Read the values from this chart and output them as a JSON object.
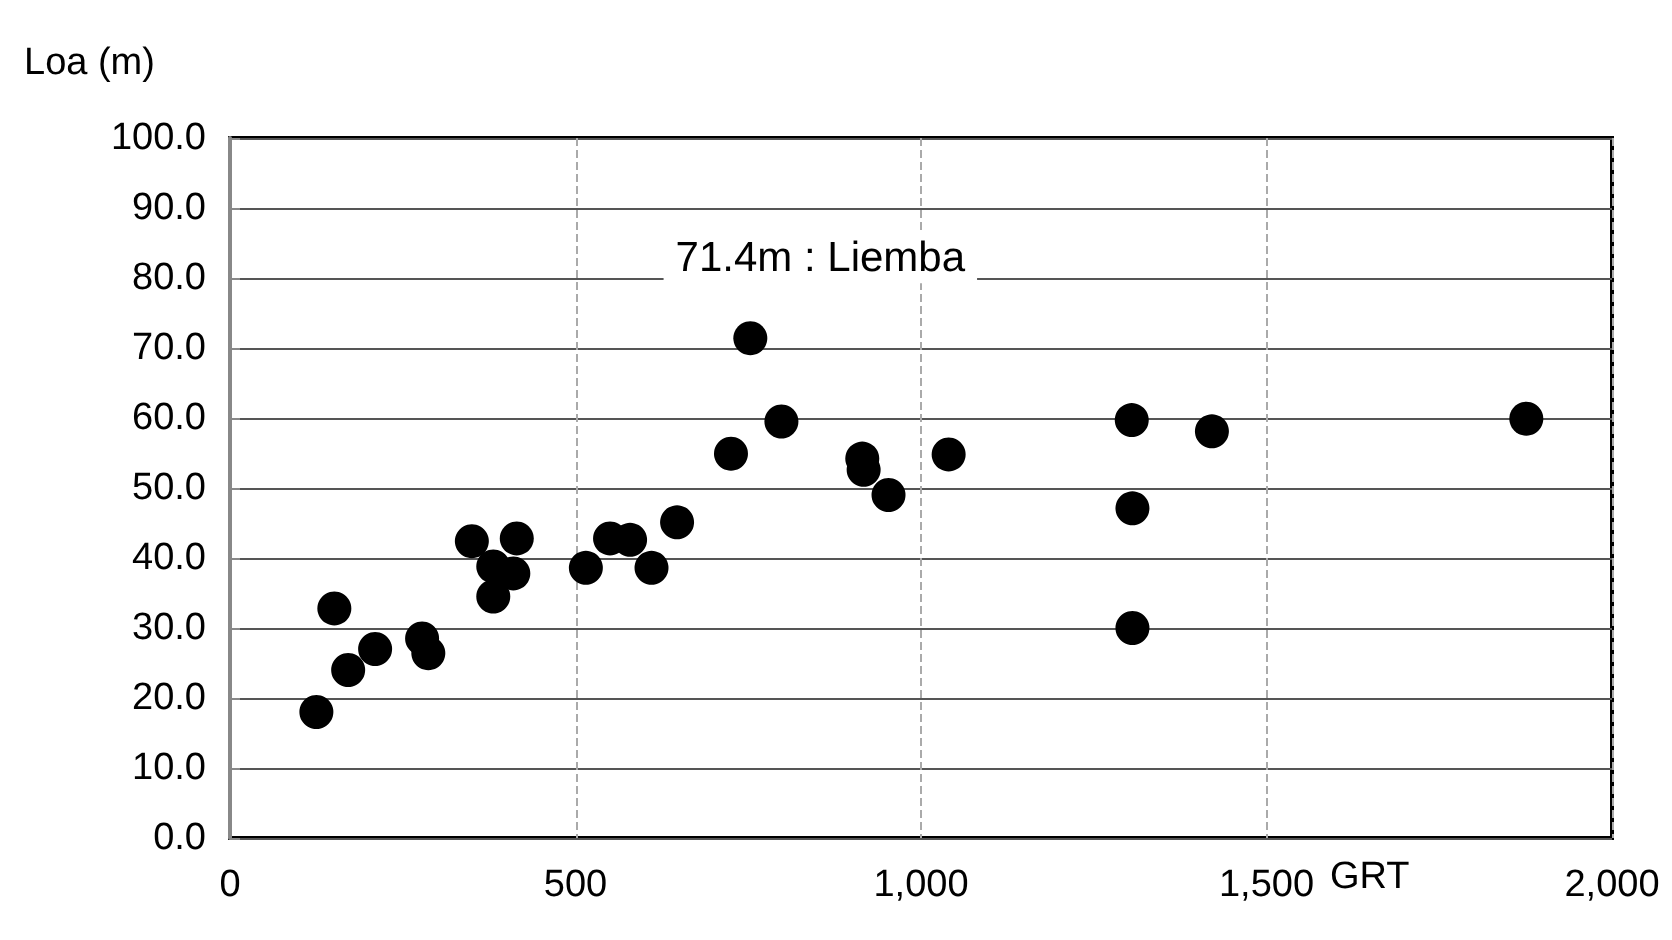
{
  "chart_data": {
    "type": "scatter",
    "xlabel": "GRT",
    "ylabel": "Loa (m)",
    "x": [
      125,
      151,
      171,
      210,
      278,
      287,
      350,
      415,
      381,
      410,
      381,
      515,
      550,
      579,
      610,
      647,
      725,
      753,
      798,
      915,
      917,
      953,
      1040,
      1305,
      1421,
      1306,
      1306,
      1876
    ],
    "series": [
      {
        "color": "#000000",
        "values": [
          18.0,
          32.8,
          24.0,
          27.0,
          28.5,
          26.4,
          42.4,
          42.8,
          38.8,
          37.8,
          34.5,
          38.6,
          42.8,
          42.6,
          38.6,
          45.1,
          54.9,
          71.4,
          59.5,
          54.2,
          52.6,
          49.0,
          54.8,
          59.7,
          58.1,
          47.1,
          30.0,
          59.9
        ]
      }
    ],
    "xlim": [
      0,
      2000
    ],
    "xticks": [
      0,
      500,
      {
        "value": 1000,
        "label": "1,000"
      },
      {
        "value": 1500,
        "label": "1,500"
      },
      {
        "value": 2000,
        "label": "2,000"
      }
    ],
    "ylim": [
      0,
      100
    ],
    "yticks": [
      {
        "value": 0,
        "label": "0.0"
      },
      {
        "value": 10,
        "label": "10.0"
      },
      {
        "value": 20,
        "label": "20.0"
      },
      {
        "value": 30,
        "label": "30.0"
      },
      {
        "value": 40,
        "label": "40.0"
      },
      {
        "value": 50,
        "label": "50.0"
      },
      {
        "value": 60,
        "label": "60.0"
      },
      {
        "value": 70,
        "label": "70.0"
      },
      {
        "value": 80,
        "label": "80.0"
      },
      {
        "value": 90,
        "label": "90.0"
      },
      {
        "value": 100,
        "label": "100.0"
      }
    ],
    "annotations": [
      {
        "text": "71.4m : Liemba",
        "x": 753,
        "y": 71.4
      }
    ],
    "grid": true,
    "marker": "circle"
  }
}
